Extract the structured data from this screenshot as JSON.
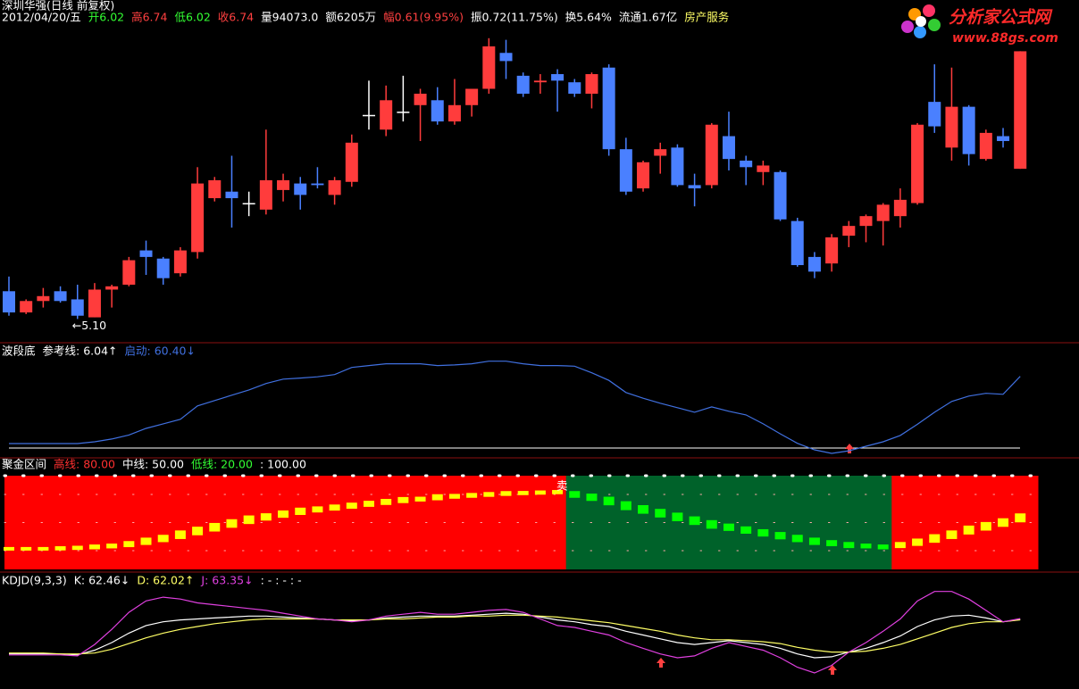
{
  "header": {
    "title": "深圳华强(日线 前复权)",
    "items": [
      {
        "text": "2012/04/20/五",
        "color": "#ffffff"
      },
      {
        "text": "开6.02",
        "color": "#33ff33"
      },
      {
        "text": "高6.74",
        "color": "#ff4040"
      },
      {
        "text": "低6.02",
        "color": "#33ff33"
      },
      {
        "text": "收6.74",
        "color": "#ff4040"
      },
      {
        "text": "量94073.0",
        "color": "#ffffff"
      },
      {
        "text": "额6205万",
        "color": "#ffffff"
      },
      {
        "text": "幅0.61(9.95%)",
        "color": "#ff4040"
      },
      {
        "text": "振0.72(11.75%)",
        "color": "#ffffff"
      },
      {
        "text": "换5.64%",
        "color": "#ffffff"
      },
      {
        "text": "流通1.67亿",
        "color": "#ffffff"
      },
      {
        "text": "房产服务",
        "color": "#ffff66"
      }
    ]
  },
  "logo": {
    "name": "分析家公式网",
    "url": "www.88gs.com"
  },
  "chart_data": [
    {
      "type": "candlestick",
      "up_color": "#ff3c3c",
      "down_color": "#4a80ff",
      "doji_color": "#ffffff",
      "ylim": [
        4.96,
        6.89
      ],
      "min_label": "←5.10",
      "series": {
        "open": [
          5.27,
          5.14,
          5.21,
          5.27,
          5.22,
          5.11,
          5.28,
          5.31,
          5.52,
          5.47,
          5.38,
          5.51,
          5.84,
          5.88,
          5.81,
          5.77,
          5.89,
          5.93,
          5.93,
          5.86,
          5.94,
          6.35,
          6.26,
          6.37,
          6.41,
          6.44,
          6.31,
          6.41,
          6.51,
          6.73,
          6.59,
          6.55,
          6.6,
          6.55,
          6.48,
          6.64,
          6.14,
          5.9,
          6.1,
          6.15,
          5.92,
          5.92,
          6.22,
          6.07,
          6.0,
          6.0,
          5.7,
          5.48,
          5.44,
          5.61,
          5.67,
          5.7,
          5.73,
          5.81,
          6.43,
          6.15,
          6.4,
          6.08,
          6.22,
          6.02
        ],
        "high": [
          5.36,
          5.22,
          5.29,
          5.3,
          5.31,
          5.32,
          5.31,
          5.48,
          5.58,
          5.48,
          5.54,
          6.03,
          5.97,
          6.1,
          5.88,
          6.26,
          5.99,
          5.97,
          6.03,
          5.97,
          6.23,
          6.56,
          6.53,
          6.59,
          6.51,
          6.52,
          6.57,
          6.51,
          6.82,
          6.81,
          6.61,
          6.6,
          6.63,
          6.57,
          6.61,
          6.66,
          6.21,
          6.07,
          6.18,
          6.17,
          5.99,
          6.3,
          6.37,
          6.1,
          6.07,
          6.01,
          5.72,
          5.51,
          5.62,
          5.7,
          5.74,
          5.81,
          5.9,
          6.3,
          6.66,
          6.64,
          6.41,
          6.26,
          6.27,
          6.74
        ],
        "low": [
          5.12,
          5.13,
          5.17,
          5.2,
          5.1,
          5.11,
          5.17,
          5.3,
          5.37,
          5.31,
          5.36,
          5.47,
          5.82,
          5.66,
          5.73,
          5.74,
          5.82,
          5.77,
          5.9,
          5.8,
          5.91,
          6.26,
          6.22,
          6.31,
          6.19,
          6.29,
          6.29,
          6.34,
          6.48,
          6.57,
          6.46,
          6.48,
          6.37,
          6.46,
          6.39,
          6.1,
          5.86,
          5.88,
          5.99,
          5.91,
          5.79,
          5.9,
          6.01,
          5.92,
          5.92,
          5.7,
          5.42,
          5.35,
          5.39,
          5.54,
          5.57,
          5.55,
          5.66,
          5.8,
          6.24,
          6.07,
          6.04,
          6.07,
          6.15,
          6.02
        ],
        "close": [
          5.14,
          5.21,
          5.24,
          5.21,
          5.12,
          5.28,
          5.3,
          5.46,
          5.48,
          5.35,
          5.52,
          5.93,
          5.95,
          5.84,
          5.81,
          5.95,
          5.95,
          5.86,
          5.92,
          5.95,
          6.18,
          6.35,
          6.44,
          6.37,
          6.48,
          6.31,
          6.41,
          6.51,
          6.77,
          6.68,
          6.48,
          6.56,
          6.56,
          6.48,
          6.6,
          6.14,
          5.88,
          6.06,
          6.14,
          5.92,
          5.9,
          6.29,
          6.08,
          6.03,
          6.04,
          5.71,
          5.43,
          5.39,
          5.6,
          5.67,
          5.73,
          5.8,
          5.83,
          6.29,
          6.28,
          6.4,
          6.11,
          6.24,
          6.19,
          6.74
        ]
      }
    },
    {
      "type": "line",
      "title": "波段底",
      "reference_label": "参考线: 6.04↑",
      "ylim": [
        -7.5,
        88
      ],
      "series": [
        {
          "name": "启动: 60.40↓",
          "color": "#4070e0",
          "values": [
            3.8,
            3.8,
            3.8,
            3.8,
            3.8,
            5.3,
            7.6,
            11,
            16.6,
            20.4,
            24.2,
            35.5,
            40,
            44.5,
            49,
            54.4,
            58.1,
            59,
            60,
            61.9,
            67.9,
            69.5,
            71,
            71,
            71,
            69.5,
            70,
            71,
            73.2,
            73.2,
            71,
            69.5,
            69.5,
            69,
            63.4,
            57,
            46.8,
            42,
            37.8,
            34,
            30.2,
            34.7,
            31,
            27.9,
            20.4,
            12,
            4,
            -1.5,
            -4.5,
            -2.3,
            1.5,
            5.3,
            10.6,
            20,
            30.2,
            39.3,
            43.8,
            46.1,
            45.3,
            60.4
          ]
        }
      ]
    },
    {
      "type": "band",
      "title": "聚金区间",
      "signal_label": "卖",
      "ylim": [
        0,
        100
      ],
      "rise_color": "#ffff00",
      "fall_color": "#00ff00",
      "up_zone_color": "#ff0000",
      "down_zone_color": "#00622a",
      "levels": [
        {
          "value": 80,
          "label": "高线: 80.00",
          "color": "#ff3030"
        },
        {
          "value": 50,
          "label": "中线: 50.00",
          "color": "#ffffff"
        },
        {
          "value": 20,
          "label": "低线: 20.00",
          "color": "#33ff33"
        },
        {
          "value": 100,
          "label": ": 100.00",
          "color": "#ffffff"
        }
      ],
      "values": [
        22,
        22,
        22,
        22.5,
        23,
        24,
        25,
        27,
        30,
        33,
        37,
        41,
        45,
        49,
        53,
        56,
        59,
        62,
        64,
        66,
        68,
        70,
        72,
        74,
        75,
        77,
        78,
        79,
        80,
        81,
        81.5,
        82,
        82.5,
        80,
        77,
        73,
        68,
        64,
        60,
        56,
        52,
        48,
        45,
        42,
        39,
        36,
        33,
        30,
        28,
        26,
        25,
        24,
        26,
        29,
        33,
        37,
        42,
        46,
        50,
        55
      ]
    },
    {
      "type": "line",
      "title": "KDJD(9,3,3)",
      "note": ": - : - : -",
      "ylim": [
        -11,
        104
      ],
      "series": [
        {
          "name": "K: 62.46↓",
          "color": "#ffffff",
          "values": [
            26,
            26,
            26,
            26,
            25,
            30,
            38,
            48,
            56,
            60,
            62,
            63,
            64,
            65,
            66,
            66,
            65,
            64,
            63,
            62,
            61,
            62,
            64,
            65,
            66,
            66,
            66,
            67,
            68,
            69,
            68,
            65,
            62,
            60,
            57,
            55,
            50,
            46,
            42,
            38,
            36,
            38,
            40,
            38,
            36,
            32,
            26,
            22,
            23,
            28,
            32,
            38,
            45,
            55,
            62,
            66,
            67,
            64,
            60,
            62.46
          ]
        },
        {
          "name": "D: 62.02↑",
          "color": "#ffff66",
          "values": [
            27,
            27,
            27,
            26,
            26,
            27,
            31,
            37,
            43,
            48,
            52,
            55,
            58,
            60,
            62,
            63,
            63,
            63,
            63,
            62,
            62,
            62,
            63,
            63,
            64,
            65,
            65,
            66,
            66,
            67,
            67,
            66,
            65,
            63,
            61,
            59,
            56,
            53,
            50,
            46,
            43,
            41,
            41,
            40,
            39,
            37,
            33,
            30,
            28,
            28,
            29,
            32,
            36,
            42,
            48,
            54,
            58,
            60,
            60,
            62.02
          ]
        },
        {
          "name": "J: 63.35↓",
          "color": "#e040e0",
          "values": [
            25,
            25,
            25,
            25,
            24,
            36,
            52,
            70,
            82,
            86,
            84,
            80,
            78,
            76,
            74,
            72,
            69,
            66,
            63,
            62,
            60,
            62,
            66,
            68,
            70,
            68,
            68,
            70,
            72,
            73,
            70,
            63,
            56,
            54,
            50,
            46,
            38,
            32,
            26,
            22,
            24,
            32,
            38,
            34,
            30,
            22,
            12,
            6,
            14,
            28,
            38,
            50,
            63,
            82,
            92,
            92,
            84,
            72,
            60,
            63.35
          ]
        }
      ]
    }
  ]
}
